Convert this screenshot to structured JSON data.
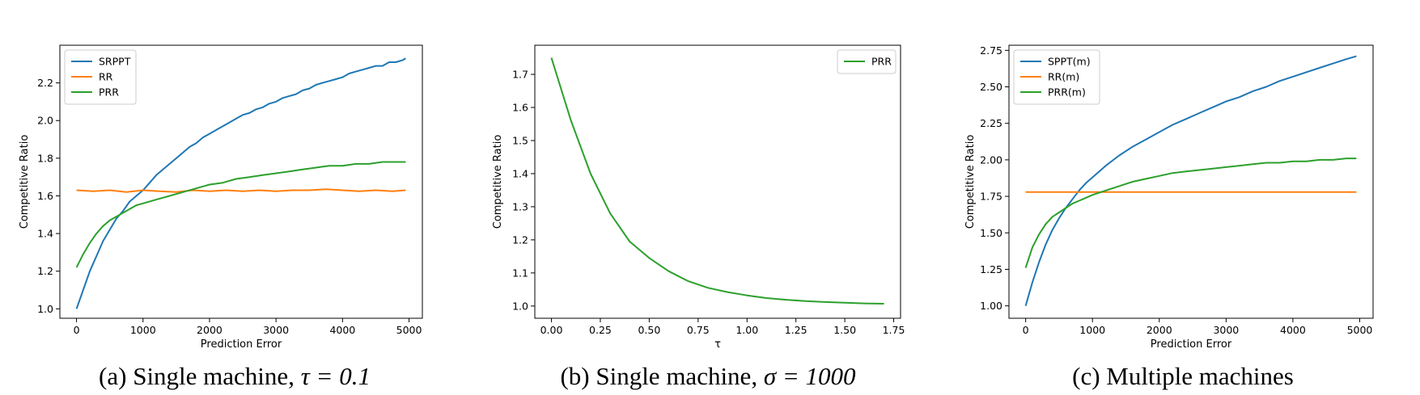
{
  "chart_data": [
    {
      "type": "line",
      "caption": "(a) Single machine, τ = 0.1",
      "caption_prefix": "(a) Single machine, ",
      "caption_math": "τ = 0.1",
      "xlabel": "Prediction Error",
      "ylabel": "Competitive Ratio",
      "xlim": [
        -250,
        5200
      ],
      "ylim": [
        0.95,
        2.4
      ],
      "xticks": [
        0,
        1000,
        2000,
        3000,
        4000,
        5000
      ],
      "xtick_labels": [
        "0",
        "1000",
        "2000",
        "3000",
        "4000",
        "5000"
      ],
      "yticks": [
        1.0,
        1.2,
        1.4,
        1.6,
        1.8,
        2.0,
        2.2
      ],
      "ytick_labels": [
        "1.0",
        "1.2",
        "1.4",
        "1.6",
        "1.8",
        "2.0",
        "2.2"
      ],
      "legend_position": "upper-left",
      "grid": false,
      "series": [
        {
          "name": "SRPPT",
          "color": "#1f77b4",
          "x": [
            0,
            100,
            200,
            300,
            400,
            500,
            600,
            700,
            800,
            900,
            1000,
            1100,
            1200,
            1300,
            1400,
            1500,
            1600,
            1700,
            1800,
            1900,
            2000,
            2100,
            2200,
            2300,
            2400,
            2500,
            2600,
            2700,
            2800,
            2900,
            3000,
            3100,
            3200,
            3300,
            3400,
            3500,
            3600,
            3700,
            3800,
            3900,
            4000,
            4100,
            4200,
            4300,
            4400,
            4500,
            4600,
            4700,
            4800,
            4900,
            4950
          ],
          "y": [
            1.0,
            1.1,
            1.2,
            1.28,
            1.36,
            1.42,
            1.48,
            1.52,
            1.57,
            1.6,
            1.63,
            1.67,
            1.71,
            1.74,
            1.77,
            1.8,
            1.83,
            1.86,
            1.88,
            1.91,
            1.93,
            1.95,
            1.97,
            1.99,
            2.01,
            2.03,
            2.04,
            2.06,
            2.07,
            2.09,
            2.1,
            2.12,
            2.13,
            2.14,
            2.16,
            2.17,
            2.19,
            2.2,
            2.21,
            2.22,
            2.23,
            2.25,
            2.26,
            2.27,
            2.28,
            2.29,
            2.29,
            2.31,
            2.31,
            2.32,
            2.33
          ]
        },
        {
          "name": "RR",
          "color": "#ff7f0e",
          "x": [
            0,
            250,
            500,
            750,
            1000,
            1250,
            1500,
            1750,
            2000,
            2250,
            2500,
            2750,
            3000,
            3250,
            3500,
            3750,
            4000,
            4250,
            4500,
            4750,
            4950
          ],
          "y": [
            1.63,
            1.625,
            1.63,
            1.62,
            1.63,
            1.625,
            1.62,
            1.63,
            1.625,
            1.63,
            1.625,
            1.63,
            1.625,
            1.63,
            1.63,
            1.635,
            1.63,
            1.625,
            1.63,
            1.625,
            1.63
          ]
        },
        {
          "name": "PRR",
          "color": "#2ca02c",
          "x": [
            0,
            100,
            200,
            300,
            400,
            500,
            600,
            700,
            800,
            900,
            1000,
            1200,
            1400,
            1600,
            1800,
            2000,
            2200,
            2400,
            2600,
            2800,
            3000,
            3200,
            3400,
            3600,
            3800,
            4000,
            4200,
            4400,
            4600,
            4800,
            4950
          ],
          "y": [
            1.22,
            1.29,
            1.35,
            1.4,
            1.44,
            1.47,
            1.49,
            1.51,
            1.53,
            1.55,
            1.56,
            1.58,
            1.6,
            1.62,
            1.64,
            1.66,
            1.67,
            1.69,
            1.7,
            1.71,
            1.72,
            1.73,
            1.74,
            1.75,
            1.76,
            1.76,
            1.77,
            1.77,
            1.78,
            1.78,
            1.78
          ]
        }
      ]
    },
    {
      "type": "line",
      "caption": "(b) Single machine, σ = 1000",
      "caption_prefix": "(b) Single machine, ",
      "caption_math": "σ = 1000",
      "xlabel": "τ",
      "ylabel": "Competitive Ratio",
      "xlim": [
        -0.085,
        1.785
      ],
      "ylim": [
        0.963,
        1.788
      ],
      "xticks": [
        0.0,
        0.25,
        0.5,
        0.75,
        1.0,
        1.25,
        1.5,
        1.75
      ],
      "xtick_labels": [
        "0.00",
        "0.25",
        "0.50",
        "0.75",
        "1.00",
        "1.25",
        "1.50",
        "1.75"
      ],
      "yticks": [
        1.0,
        1.1,
        1.2,
        1.3,
        1.4,
        1.5,
        1.6,
        1.7
      ],
      "ytick_labels": [
        "1.0",
        "1.1",
        "1.2",
        "1.3",
        "1.4",
        "1.5",
        "1.6",
        "1.7"
      ],
      "legend_position": "upper-right",
      "grid": false,
      "series": [
        {
          "name": "PRR",
          "color": "#2ca02c",
          "x": [
            0.0,
            0.1,
            0.2,
            0.3,
            0.4,
            0.5,
            0.6,
            0.7,
            0.8,
            0.9,
            1.0,
            1.1,
            1.2,
            1.3,
            1.4,
            1.5,
            1.6,
            1.7
          ],
          "y": [
            1.75,
            1.56,
            1.4,
            1.28,
            1.195,
            1.145,
            1.105,
            1.075,
            1.055,
            1.042,
            1.032,
            1.024,
            1.019,
            1.015,
            1.012,
            1.01,
            1.008,
            1.007
          ]
        }
      ]
    },
    {
      "type": "line",
      "caption": "(c) Multiple machines",
      "caption_prefix": "(c) Multiple machines",
      "caption_math": "",
      "xlabel": "Prediction Error",
      "ylabel": "Competitive Ratio",
      "xlim": [
        -250,
        5200
      ],
      "ylim": [
        0.915,
        2.785
      ],
      "xticks": [
        0,
        1000,
        2000,
        3000,
        4000,
        5000
      ],
      "xtick_labels": [
        "0",
        "1000",
        "2000",
        "3000",
        "4000",
        "5000"
      ],
      "yticks": [
        1.0,
        1.25,
        1.5,
        1.75,
        2.0,
        2.25,
        2.5,
        2.75
      ],
      "ytick_labels": [
        "1.00",
        "1.25",
        "1.50",
        "1.75",
        "2.00",
        "2.25",
        "2.50",
        "2.75"
      ],
      "legend_position": "upper-left",
      "grid": false,
      "series": [
        {
          "name": "SPPT(m)",
          "color": "#1f77b4",
          "x": [
            0,
            100,
            200,
            300,
            400,
            500,
            600,
            700,
            800,
            900,
            1000,
            1200,
            1400,
            1600,
            1800,
            2000,
            2200,
            2400,
            2600,
            2800,
            3000,
            3200,
            3400,
            3600,
            3800,
            4000,
            4200,
            4400,
            4600,
            4800,
            4950
          ],
          "y": [
            1.0,
            1.16,
            1.3,
            1.42,
            1.52,
            1.6,
            1.67,
            1.73,
            1.79,
            1.84,
            1.88,
            1.96,
            2.03,
            2.09,
            2.14,
            2.19,
            2.24,
            2.28,
            2.32,
            2.36,
            2.4,
            2.43,
            2.47,
            2.5,
            2.54,
            2.57,
            2.6,
            2.63,
            2.66,
            2.69,
            2.71
          ]
        },
        {
          "name": "RR(m)",
          "color": "#ff7f0e",
          "x": [
            0,
            500,
            1000,
            1500,
            2000,
            2500,
            3000,
            3500,
            4000,
            4500,
            4950
          ],
          "y": [
            1.78,
            1.78,
            1.78,
            1.78,
            1.78,
            1.78,
            1.78,
            1.78,
            1.78,
            1.78,
            1.78
          ]
        },
        {
          "name": "PRR(m)",
          "color": "#2ca02c",
          "x": [
            0,
            100,
            200,
            300,
            400,
            500,
            600,
            700,
            800,
            900,
            1000,
            1200,
            1400,
            1600,
            1800,
            2000,
            2200,
            2400,
            2600,
            2800,
            3000,
            3200,
            3400,
            3600,
            3800,
            4000,
            4200,
            4400,
            4600,
            4800,
            4950
          ],
          "y": [
            1.26,
            1.4,
            1.49,
            1.56,
            1.61,
            1.64,
            1.67,
            1.7,
            1.72,
            1.74,
            1.76,
            1.79,
            1.82,
            1.85,
            1.87,
            1.89,
            1.91,
            1.92,
            1.93,
            1.94,
            1.95,
            1.96,
            1.97,
            1.98,
            1.98,
            1.99,
            1.99,
            2.0,
            2.0,
            2.01,
            2.01
          ]
        }
      ]
    }
  ]
}
